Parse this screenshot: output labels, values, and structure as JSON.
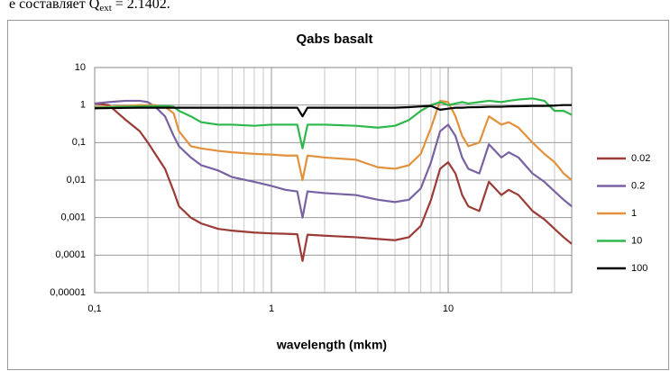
{
  "caption": {
    "before": "е составляет Q",
    "sub": "ext",
    "after": " = 2.1402."
  },
  "chart_data": {
    "type": "line",
    "title": "Qabs basalt",
    "x_label": "wavelength (mkm)",
    "xscale": "log",
    "yscale": "log",
    "grid": true,
    "legend": "right",
    "xlim": [
      0.1,
      50
    ],
    "ylim": [
      1e-05,
      10
    ],
    "xticks": [
      {
        "value": 0.1,
        "label": "0,1"
      },
      1,
      10
    ],
    "xgrid_minor": [
      0.2,
      0.3,
      0.4,
      0.5,
      0.6,
      0.7,
      0.8,
      0.9,
      2,
      3,
      4,
      5,
      6,
      7,
      8,
      9,
      20,
      30,
      40,
      50
    ],
    "yticks": [
      {
        "value": 1e-05,
        "label": "0,00001"
      },
      {
        "value": 0.0001,
        "label": "0,0001"
      },
      {
        "value": 0.001,
        "label": "0,001"
      },
      {
        "value": 0.01,
        "label": "0,01"
      },
      {
        "value": 0.1,
        "label": "0,1"
      },
      1,
      10
    ],
    "x": [
      0.1,
      0.12,
      0.15,
      0.18,
      0.2,
      0.22,
      0.25,
      0.28,
      0.3,
      0.35,
      0.4,
      0.5,
      0.6,
      0.8,
      1,
      1.2,
      1.4,
      1.5,
      1.6,
      2,
      3,
      4,
      5,
      6,
      7,
      8,
      9,
      10,
      11,
      12,
      13,
      15,
      17,
      20,
      22,
      25,
      30,
      35,
      40,
      45,
      50
    ],
    "series": [
      {
        "name": "0.02",
        "color": "#9c3b36",
        "values": [
          1.1,
          1.0,
          0.4,
          0.2,
          0.1,
          0.05,
          0.02,
          0.005,
          0.002,
          0.001,
          0.0007,
          0.0005,
          0.00045,
          0.0004,
          0.00038,
          0.00037,
          0.00036,
          7e-05,
          0.00035,
          0.00033,
          0.0003,
          0.00027,
          0.00025,
          0.0003,
          0.0006,
          0.003,
          0.02,
          0.03,
          0.015,
          0.004,
          0.002,
          0.0015,
          0.009,
          0.004,
          0.0055,
          0.004,
          0.0015,
          0.0009,
          0.0005,
          0.0003,
          0.0002
        ]
      },
      {
        "name": "0.2",
        "color": "#7862a3",
        "values": [
          1.1,
          1.2,
          1.3,
          1.3,
          1.2,
          0.9,
          0.5,
          0.15,
          0.08,
          0.04,
          0.025,
          0.018,
          0.012,
          0.009,
          0.007,
          0.0055,
          0.005,
          0.001,
          0.005,
          0.0045,
          0.004,
          0.003,
          0.0026,
          0.003,
          0.006,
          0.03,
          0.2,
          0.3,
          0.15,
          0.04,
          0.02,
          0.015,
          0.09,
          0.04,
          0.055,
          0.04,
          0.015,
          0.009,
          0.005,
          0.003,
          0.002
        ]
      },
      {
        "name": "1",
        "color": "#e3913d",
        "values": [
          0.9,
          0.9,
          0.95,
          1.0,
          1.0,
          1.0,
          0.9,
          0.6,
          0.2,
          0.08,
          0.07,
          0.06,
          0.055,
          0.05,
          0.048,
          0.045,
          0.045,
          0.01,
          0.045,
          0.04,
          0.035,
          0.022,
          0.02,
          0.025,
          0.05,
          0.25,
          1.3,
          1.2,
          0.5,
          0.15,
          0.08,
          0.1,
          0.5,
          0.3,
          0.35,
          0.25,
          0.1,
          0.05,
          0.03,
          0.015,
          0.01
        ]
      },
      {
        "name": "10",
        "color": "#2eb84b",
        "values": [
          0.85,
          0.87,
          0.9,
          0.92,
          0.93,
          0.94,
          0.95,
          0.9,
          0.7,
          0.5,
          0.35,
          0.3,
          0.3,
          0.28,
          0.3,
          0.3,
          0.3,
          0.07,
          0.3,
          0.3,
          0.28,
          0.25,
          0.28,
          0.4,
          0.7,
          1.0,
          1.2,
          1.0,
          1.1,
          1.2,
          1.1,
          1.2,
          1.3,
          1.2,
          1.3,
          1.4,
          1.5,
          1.3,
          0.7,
          0.7,
          0.55
        ]
      },
      {
        "name": "100",
        "color": "#000000",
        "values": [
          0.82,
          0.83,
          0.84,
          0.85,
          0.85,
          0.85,
          0.85,
          0.85,
          0.85,
          0.85,
          0.85,
          0.85,
          0.85,
          0.85,
          0.85,
          0.85,
          0.85,
          0.5,
          0.85,
          0.85,
          0.85,
          0.85,
          0.85,
          0.88,
          0.92,
          0.95,
          0.75,
          0.8,
          0.85,
          0.85,
          0.87,
          0.88,
          0.9,
          0.9,
          0.92,
          0.93,
          0.95,
          0.95,
          0.97,
          1.0,
          1.0
        ]
      }
    ]
  }
}
